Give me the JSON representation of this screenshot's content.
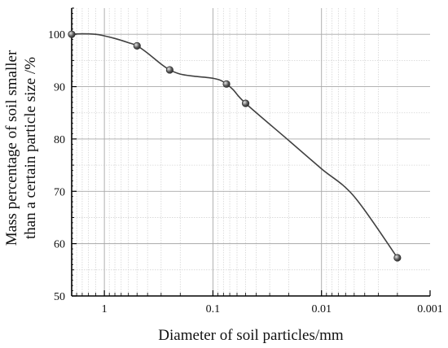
{
  "chart_data": {
    "type": "line",
    "xscale": "log-reversed",
    "xlabel": "Diameter of soil particles/mm",
    "ylabel_line1": "Mass percentage of soil smaller",
    "ylabel_line2": "than a certain particle size /%",
    "xlim": [
      2,
      0.001
    ],
    "ylim": [
      50,
      105
    ],
    "x_ticks": [
      {
        "value": 1,
        "label": "1"
      },
      {
        "value": 0.1,
        "label": "0.1"
      },
      {
        "value": 0.01,
        "label": "0.01"
      },
      {
        "value": 0.001,
        "label": "0.001"
      }
    ],
    "y_ticks": [
      {
        "value": 50,
        "label": "50"
      },
      {
        "value": 60,
        "label": "60"
      },
      {
        "value": 70,
        "label": "70"
      },
      {
        "value": 80,
        "label": "80"
      },
      {
        "value": 90,
        "label": "90"
      },
      {
        "value": 100,
        "label": "100"
      }
    ],
    "grid": true,
    "series": [
      {
        "x": [
          2,
          0.5,
          0.25,
          0.075,
          0.05,
          0.002
        ],
        "y": [
          100,
          97.8,
          93.2,
          90.5,
          86.8,
          57.3
        ]
      }
    ],
    "curve": {
      "x": [
        2,
        1.6,
        1.2,
        1.0,
        0.8,
        0.6,
        0.5,
        0.4,
        0.3,
        0.25,
        0.2,
        0.15,
        0.12,
        0.1,
        0.085,
        0.075,
        0.065,
        0.05,
        0.02,
        0.01,
        0.005,
        0.002
      ],
      "y": [
        100,
        100.1,
        100.0,
        99.7,
        99.2,
        98.4,
        97.8,
        96.4,
        94.3,
        93.2,
        92.4,
        92.0,
        91.8,
        91.6,
        91.2,
        90.5,
        89.4,
        86.8,
        79.7,
        74.3,
        69.0,
        57.3
      ]
    },
    "colors": {
      "line": "#404040",
      "marker": "#5a5a5a",
      "grid_major": "#a8a8a8",
      "grid_minor": "#d4d4d4",
      "axis": "#000000"
    }
  }
}
